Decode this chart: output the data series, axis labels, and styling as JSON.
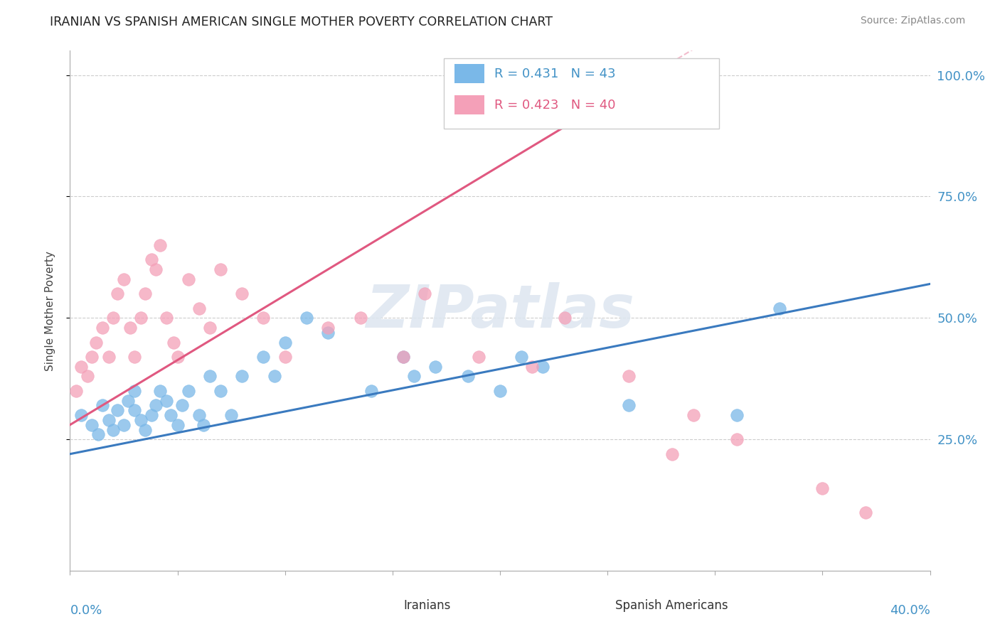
{
  "title": "IRANIAN VS SPANISH AMERICAN SINGLE MOTHER POVERTY CORRELATION CHART",
  "source": "Source: ZipAtlas.com",
  "ylabel": "Single Mother Poverty",
  "xlim": [
    0.0,
    0.4
  ],
  "ylim": [
    -0.02,
    1.05
  ],
  "yticks": [
    0.25,
    0.5,
    0.75,
    1.0
  ],
  "ytick_labels": [
    "25.0%",
    "50.0%",
    "75.0%",
    "100.0%"
  ],
  "background_color": "#ffffff",
  "blue_color": "#7ab8e8",
  "pink_color": "#f4a0b8",
  "blue_line_color": "#3a7abf",
  "pink_line_color": "#e05880",
  "legend_blue_label": "R = 0.431   N = 43",
  "legend_pink_label": "R = 0.423   N = 40",
  "iranians_x": [
    0.005,
    0.01,
    0.013,
    0.015,
    0.018,
    0.02,
    0.022,
    0.025,
    0.027,
    0.03,
    0.03,
    0.033,
    0.035,
    0.038,
    0.04,
    0.042,
    0.045,
    0.047,
    0.05,
    0.052,
    0.055,
    0.06,
    0.062,
    0.065,
    0.07,
    0.075,
    0.08,
    0.09,
    0.095,
    0.1,
    0.11,
    0.12,
    0.14,
    0.155,
    0.16,
    0.17,
    0.185,
    0.2,
    0.21,
    0.22,
    0.26,
    0.31,
    0.33
  ],
  "iranians_y": [
    0.3,
    0.28,
    0.26,
    0.32,
    0.29,
    0.27,
    0.31,
    0.28,
    0.33,
    0.31,
    0.35,
    0.29,
    0.27,
    0.3,
    0.32,
    0.35,
    0.33,
    0.3,
    0.28,
    0.32,
    0.35,
    0.3,
    0.28,
    0.38,
    0.35,
    0.3,
    0.38,
    0.42,
    0.38,
    0.45,
    0.5,
    0.47,
    0.35,
    0.42,
    0.38,
    0.4,
    0.38,
    0.35,
    0.42,
    0.4,
    0.32,
    0.3,
    0.52
  ],
  "spanish_x": [
    0.003,
    0.005,
    0.008,
    0.01,
    0.012,
    0.015,
    0.018,
    0.02,
    0.022,
    0.025,
    0.028,
    0.03,
    0.033,
    0.035,
    0.038,
    0.04,
    0.042,
    0.045,
    0.048,
    0.05,
    0.055,
    0.06,
    0.065,
    0.07,
    0.08,
    0.09,
    0.1,
    0.12,
    0.135,
    0.155,
    0.165,
    0.19,
    0.215,
    0.23,
    0.26,
    0.28,
    0.29,
    0.31,
    0.35,
    0.37
  ],
  "spanish_y": [
    0.35,
    0.4,
    0.38,
    0.42,
    0.45,
    0.48,
    0.42,
    0.5,
    0.55,
    0.58,
    0.48,
    0.42,
    0.5,
    0.55,
    0.62,
    0.6,
    0.65,
    0.5,
    0.45,
    0.42,
    0.58,
    0.52,
    0.48,
    0.6,
    0.55,
    0.5,
    0.42,
    0.48,
    0.5,
    0.42,
    0.55,
    0.42,
    0.4,
    0.5,
    0.38,
    0.22,
    0.3,
    0.25,
    0.15,
    0.1
  ],
  "blue_line_x0": 0.0,
  "blue_line_y0": 0.22,
  "blue_line_x1": 0.4,
  "blue_line_y1": 0.57,
  "pink_line_x0": 0.0,
  "pink_line_y0": 0.28,
  "pink_line_x1": 0.27,
  "pink_line_y1": 1.0
}
